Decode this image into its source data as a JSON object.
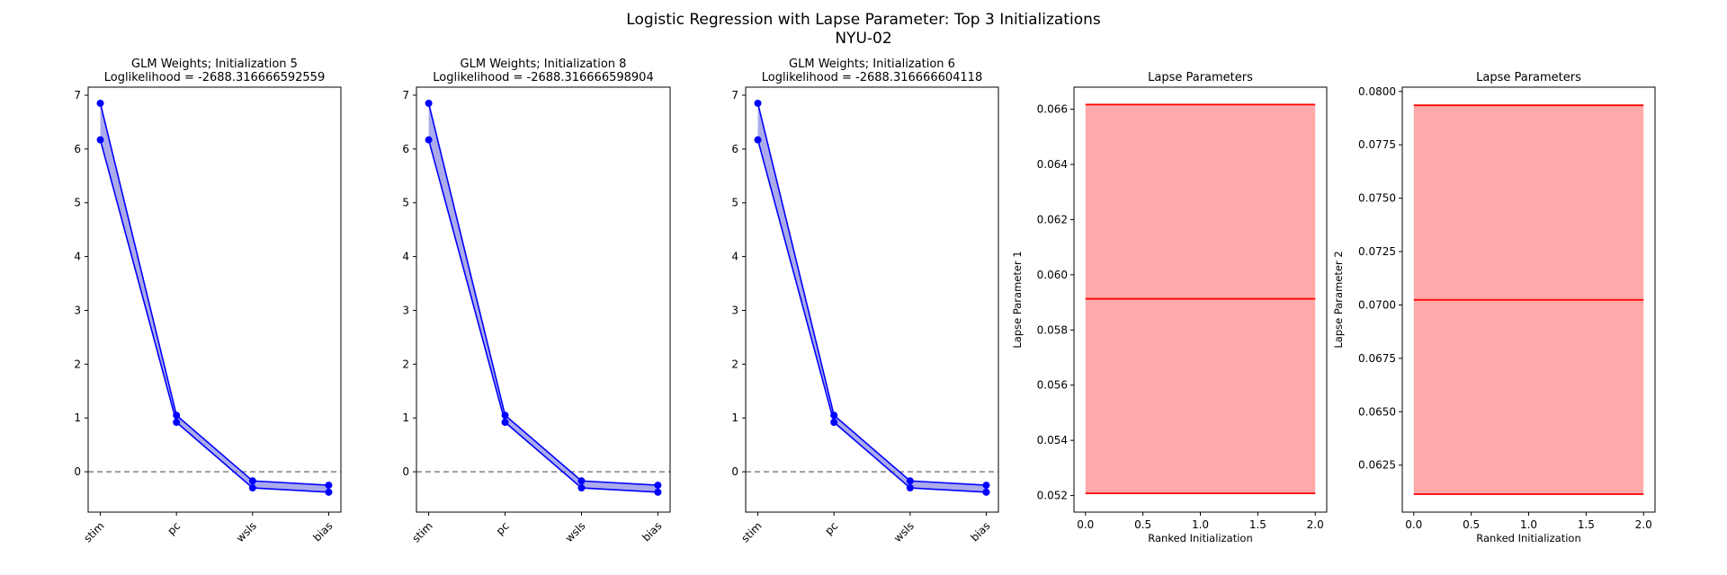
{
  "figure": {
    "suptitle_line1": "Logistic Regression with Lapse Parameter: Top 3 Initializations",
    "suptitle_line2": "NYU-02"
  },
  "colors": {
    "weights_line": "#0000ff",
    "weights_fill": "#6666dd",
    "zero_line": "#808080",
    "lapse_line": "#ff0000",
    "lapse_fill": "#ffaaaa",
    "axes": "#000000"
  },
  "chart_data": [
    {
      "type": "line",
      "title_line1": "GLM Weights; Initialization 5",
      "title_line2": "Loglikelihood = -2688.316666592559",
      "categories": [
        "stim",
        "pc",
        "wsls",
        "bias"
      ],
      "series": [
        {
          "name": "upper",
          "values": [
            6.85,
            1.05,
            -0.17,
            -0.25
          ]
        },
        {
          "name": "lower",
          "values": [
            6.17,
            0.92,
            -0.3,
            -0.38
          ]
        }
      ],
      "ylim": [
        -0.75,
        7.15
      ],
      "yticks": [
        0,
        1,
        2,
        3,
        4,
        5,
        6,
        7
      ],
      "reference_line": 0,
      "xlabel": "",
      "ylabel": ""
    },
    {
      "type": "line",
      "title_line1": "GLM Weights; Initialization 8",
      "title_line2": "Loglikelihood = -2688.316666598904",
      "categories": [
        "stim",
        "pc",
        "wsls",
        "bias"
      ],
      "series": [
        {
          "name": "upper",
          "values": [
            6.85,
            1.05,
            -0.17,
            -0.25
          ]
        },
        {
          "name": "lower",
          "values": [
            6.17,
            0.92,
            -0.3,
            -0.38
          ]
        }
      ],
      "ylim": [
        -0.75,
        7.15
      ],
      "yticks": [
        0,
        1,
        2,
        3,
        4,
        5,
        6,
        7
      ],
      "reference_line": 0,
      "xlabel": "",
      "ylabel": ""
    },
    {
      "type": "line",
      "title_line1": "GLM Weights; Initialization 6",
      "title_line2": "Loglikelihood = -2688.316666604118",
      "categories": [
        "stim",
        "pc",
        "wsls",
        "bias"
      ],
      "series": [
        {
          "name": "upper",
          "values": [
            6.85,
            1.05,
            -0.17,
            -0.25
          ]
        },
        {
          "name": "lower",
          "values": [
            6.17,
            0.92,
            -0.3,
            -0.38
          ]
        }
      ],
      "ylim": [
        -0.75,
        7.15
      ],
      "yticks": [
        0,
        1,
        2,
        3,
        4,
        5,
        6,
        7
      ],
      "reference_line": 0,
      "xlabel": "",
      "ylabel": ""
    },
    {
      "type": "area",
      "title": "Lapse Parameters",
      "xlabel": "Ranked Initialization",
      "ylabel": "Lapse Parameter 1",
      "x": [
        0,
        1,
        2
      ],
      "upper": [
        0.06617,
        0.06617,
        0.06617
      ],
      "mid": [
        0.05913,
        0.05913,
        0.05913
      ],
      "lower": [
        0.05208,
        0.05208,
        0.05208
      ],
      "xlim": [
        -0.1,
        2.1
      ],
      "ylim": [
        0.0514,
        0.0668
      ],
      "xticks": [
        0.0,
        0.5,
        1.0,
        1.5,
        2.0
      ],
      "xtick_labels": [
        "0.0",
        "0.5",
        "1.0",
        "1.5",
        "2.0"
      ],
      "yticks": [
        0.052,
        0.054,
        0.056,
        0.058,
        0.06,
        0.062,
        0.064,
        0.066
      ],
      "ytick_labels": [
        "0.052",
        "0.054",
        "0.056",
        "0.058",
        "0.060",
        "0.062",
        "0.064",
        "0.066"
      ]
    },
    {
      "type": "area",
      "title": "Lapse Parameters",
      "xlabel": "Ranked Initialization",
      "ylabel": "Lapse Parameter 2",
      "x": [
        0,
        1,
        2
      ],
      "upper": [
        0.07935,
        0.07935,
        0.07935
      ],
      "mid": [
        0.07024,
        0.07024,
        0.07024
      ],
      "lower": [
        0.06114,
        0.06114,
        0.06114
      ],
      "xlim": [
        -0.1,
        2.1
      ],
      "ylim": [
        0.0603,
        0.0802
      ],
      "xticks": [
        0.0,
        0.5,
        1.0,
        1.5,
        2.0
      ],
      "xtick_labels": [
        "0.0",
        "0.5",
        "1.0",
        "1.5",
        "2.0"
      ],
      "yticks": [
        0.0625,
        0.065,
        0.0675,
        0.07,
        0.0725,
        0.075,
        0.0775,
        0.08
      ],
      "ytick_labels": [
        "0.0625",
        "0.0650",
        "0.0675",
        "0.0700",
        "0.0725",
        "0.0750",
        "0.0775",
        "0.0800"
      ]
    }
  ]
}
